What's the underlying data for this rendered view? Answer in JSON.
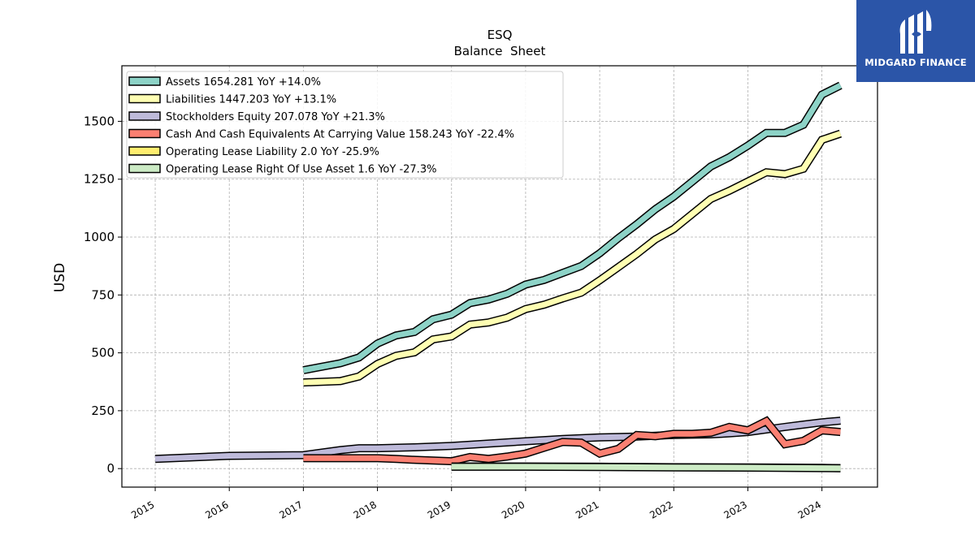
{
  "brand": {
    "name": "MIDGARD FINANCE",
    "color": "#2b55a8",
    "icon": "midgard-logo-icon"
  },
  "chart_data": {
    "type": "line",
    "title": "ESQ",
    "subtitle": "Balance  Sheet",
    "xlabel": "",
    "ylabel": "USD",
    "xlim": [
      2014.55,
      2024.75
    ],
    "ylim": [
      -80,
      1740
    ],
    "x_ticks": [
      "2015",
      "2016",
      "2017",
      "2018",
      "2019",
      "2020",
      "2021",
      "2022",
      "2023",
      "2024"
    ],
    "y_ticks": [
      0,
      250,
      500,
      750,
      1000,
      1250,
      1500
    ],
    "grid": true,
    "legend_position": "top-left",
    "series": [
      {
        "name": "Assets  1654.281 YoY +14.0%",
        "color": "#8dd3c7",
        "x": [
          2017.0,
          2017.5,
          2017.75,
          2018.0,
          2018.25,
          2018.5,
          2018.75,
          2019.0,
          2019.25,
          2019.5,
          2019.75,
          2020.0,
          2020.25,
          2020.5,
          2020.75,
          2021.0,
          2021.25,
          2021.5,
          2021.75,
          2022.0,
          2022.25,
          2022.5,
          2022.75,
          2023.0,
          2023.25,
          2023.5,
          2023.75,
          2024.0,
          2024.25
        ],
        "y": [
          425,
          455,
          480,
          540,
          575,
          590,
          645,
          665,
          715,
          730,
          755,
          795,
          815,
          845,
          875,
          930,
          995,
          1055,
          1120,
          1175,
          1240,
          1305,
          1345,
          1395,
          1450,
          1450,
          1485,
          1615,
          1655
        ]
      },
      {
        "name": "Liabilities  1447.203 YoY +13.1%",
        "color": "#ffffb3",
        "x": [
          2017.0,
          2017.5,
          2017.75,
          2018.0,
          2018.25,
          2018.5,
          2018.75,
          2019.0,
          2019.25,
          2019.5,
          2019.75,
          2020.0,
          2020.25,
          2020.5,
          2020.75,
          2021.0,
          2021.25,
          2021.5,
          2021.75,
          2022.0,
          2022.25,
          2022.5,
          2022.75,
          2023.0,
          2023.25,
          2023.5,
          2023.75,
          2024.0,
          2024.25
        ],
        "y": [
          372,
          378,
          398,
          452,
          487,
          502,
          558,
          571,
          622,
          631,
          652,
          689,
          708,
          735,
          760,
          813,
          870,
          927,
          990,
          1035,
          1100,
          1165,
          1200,
          1240,
          1280,
          1272,
          1295,
          1420,
          1447
        ]
      },
      {
        "name": "Stockholders Equity  207.078 YoY +21.3%",
        "color": "#bebada",
        "x": [
          2015.0,
          2016.0,
          2017.0,
          2017.5,
          2017.75,
          2018.0,
          2018.5,
          2019.0,
          2019.5,
          2020.0,
          2020.5,
          2021.0,
          2021.5,
          2022.0,
          2022.5,
          2022.75,
          2023.0,
          2023.5,
          2023.75,
          2024.0,
          2024.25
        ],
        "y": [
          42,
          55,
          58,
          80,
          88,
          88,
          92,
          98,
          108,
          118,
          128,
          135,
          138,
          145,
          148,
          152,
          158,
          180,
          190,
          200,
          207
        ]
      },
      {
        "name": "Cash And Cash Equivalents At Carrying Value  158.243 YoY -22.4%",
        "color": "#fb8072",
        "x": [
          2017.0,
          2017.5,
          2017.75,
          2018.0,
          2018.25,
          2018.5,
          2018.75,
          2019.0,
          2019.25,
          2019.5,
          2019.75,
          2020.0,
          2020.25,
          2020.5,
          2020.75,
          2021.0,
          2021.25,
          2021.5,
          2021.75,
          2022.0,
          2022.25,
          2022.5,
          2022.75,
          2023.0,
          2023.25,
          2023.5,
          2023.75,
          2024.0,
          2024.25
        ],
        "y": [
          45,
          45,
          45,
          45,
          42,
          38,
          35,
          32,
          50,
          42,
          52,
          65,
          90,
          115,
          112,
          65,
          85,
          145,
          140,
          150,
          150,
          155,
          180,
          165,
          205,
          105,
          120,
          165,
          158
        ]
      },
      {
        "name": "Operating Lease Liability  2.0 YoY -25.9%",
        "color": "#ffed6f",
        "x": [
          2019.0,
          2020.0,
          2021.0,
          2022.0,
          2023.0,
          2024.0,
          2024.25
        ],
        "y": [
          9,
          9,
          8,
          6,
          5,
          3,
          2
        ]
      },
      {
        "name": "Operating Lease Right Of Use Asset  1.6 YoY -27.3%",
        "color": "#ccebc5",
        "x": [
          2019.0,
          2020.0,
          2021.0,
          2022.0,
          2023.0,
          2024.0,
          2024.25
        ],
        "y": [
          8,
          8,
          7,
          5,
          4,
          2,
          1.6
        ]
      }
    ]
  }
}
